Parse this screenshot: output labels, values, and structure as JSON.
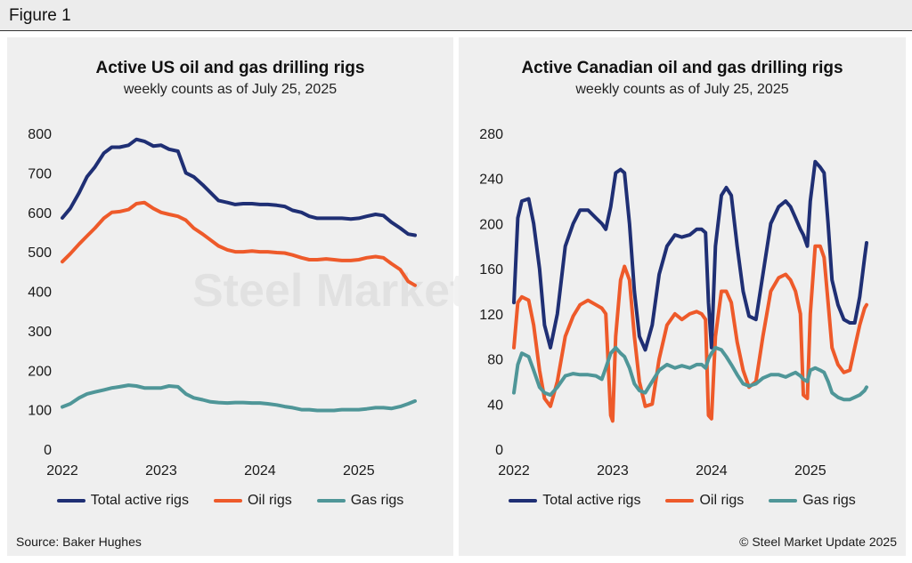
{
  "figure_title": "Figure 1",
  "watermark": "Steel Market Update",
  "footer": {
    "source": "Source: Baker Hughes",
    "copyright": "© Steel Market Update 2025"
  },
  "colors": {
    "total": "#1f2f74",
    "oil": "#ee5a2a",
    "gas": "#4f9698"
  },
  "chart_data": [
    {
      "type": "line",
      "title": "Active US oil and gas drilling rigs",
      "subtitle": "weekly counts as of July 25, 2025",
      "xlabel": "",
      "ylabel": "",
      "xlim": [
        2022.0,
        2025.75
      ],
      "ylim": [
        0,
        800
      ],
      "yticks": [
        0,
        100,
        200,
        300,
        400,
        500,
        600,
        700,
        800
      ],
      "xticks": [
        2022,
        2023,
        2024,
        2025
      ],
      "legend": "bottom",
      "series": [
        {
          "name": "Total active rigs",
          "color_key": "total",
          "x": [
            2022.0,
            2022.08,
            2022.17,
            2022.25,
            2022.33,
            2022.42,
            2022.5,
            2022.58,
            2022.67,
            2022.75,
            2022.83,
            2022.92,
            2023.0,
            2023.08,
            2023.17,
            2023.25,
            2023.33,
            2023.42,
            2023.5,
            2023.58,
            2023.67,
            2023.75,
            2023.83,
            2023.92,
            2024.0,
            2024.08,
            2024.17,
            2024.25,
            2024.33,
            2024.42,
            2024.5,
            2024.58,
            2024.67,
            2024.75,
            2024.83,
            2024.92,
            2025.0,
            2025.08,
            2025.17,
            2025.25,
            2025.33,
            2025.42,
            2025.5,
            2025.57
          ],
          "values": [
            586,
            610,
            650,
            690,
            715,
            750,
            765,
            765,
            770,
            785,
            780,
            768,
            770,
            760,
            755,
            700,
            690,
            670,
            650,
            630,
            625,
            620,
            622,
            622,
            620,
            620,
            618,
            615,
            605,
            600,
            590,
            585,
            585,
            585,
            585,
            583,
            585,
            590,
            595,
            592,
            575,
            560,
            545,
            542
          ]
        },
        {
          "name": "Oil rigs",
          "color_key": "oil",
          "x": [
            2022.0,
            2022.08,
            2022.17,
            2022.25,
            2022.33,
            2022.42,
            2022.5,
            2022.58,
            2022.67,
            2022.75,
            2022.83,
            2022.92,
            2023.0,
            2023.08,
            2023.17,
            2023.25,
            2023.33,
            2023.42,
            2023.5,
            2023.58,
            2023.67,
            2023.75,
            2023.83,
            2023.92,
            2024.0,
            2024.08,
            2024.17,
            2024.25,
            2024.33,
            2024.42,
            2024.5,
            2024.58,
            2024.67,
            2024.75,
            2024.83,
            2024.92,
            2025.0,
            2025.08,
            2025.17,
            2025.25,
            2025.33,
            2025.42,
            2025.5,
            2025.57
          ],
          "values": [
            475,
            495,
            520,
            540,
            560,
            585,
            600,
            602,
            607,
            622,
            625,
            610,
            600,
            595,
            590,
            580,
            560,
            545,
            530,
            515,
            505,
            500,
            500,
            502,
            500,
            500,
            498,
            497,
            492,
            485,
            480,
            480,
            482,
            480,
            478,
            478,
            480,
            485,
            488,
            485,
            470,
            455,
            425,
            415
          ]
        },
        {
          "name": "Gas rigs",
          "color_key": "gas",
          "x": [
            2022.0,
            2022.08,
            2022.17,
            2022.25,
            2022.33,
            2022.42,
            2022.5,
            2022.58,
            2022.67,
            2022.75,
            2022.83,
            2022.92,
            2023.0,
            2023.08,
            2023.17,
            2023.25,
            2023.33,
            2023.42,
            2023.5,
            2023.58,
            2023.67,
            2023.75,
            2023.83,
            2023.92,
            2024.0,
            2024.08,
            2024.17,
            2024.25,
            2024.33,
            2024.42,
            2024.5,
            2024.58,
            2024.67,
            2024.75,
            2024.83,
            2024.92,
            2025.0,
            2025.08,
            2025.17,
            2025.25,
            2025.33,
            2025.42,
            2025.5,
            2025.57
          ],
          "values": [
            107,
            115,
            130,
            140,
            145,
            150,
            155,
            158,
            162,
            160,
            155,
            155,
            155,
            160,
            158,
            140,
            130,
            125,
            120,
            118,
            117,
            118,
            118,
            117,
            117,
            115,
            112,
            108,
            105,
            100,
            100,
            98,
            98,
            98,
            100,
            100,
            100,
            102,
            105,
            105,
            103,
            108,
            115,
            122
          ]
        }
      ]
    },
    {
      "type": "line",
      "title": "Active Canadian oil and gas drilling rigs",
      "subtitle": "weekly counts as of July 25, 2025",
      "xlabel": "",
      "ylabel": "",
      "xlim": [
        2022.0,
        2025.75
      ],
      "ylim": [
        0,
        280
      ],
      "yticks": [
        0,
        40,
        80,
        120,
        160,
        200,
        240,
        280
      ],
      "xticks": [
        2022,
        2023,
        2024,
        2025
      ],
      "legend": "bottom",
      "series": [
        {
          "name": "Total active rigs",
          "color_key": "total",
          "x": [
            2022.0,
            2022.04,
            2022.08,
            2022.15,
            2022.2,
            2022.26,
            2022.31,
            2022.37,
            2022.44,
            2022.52,
            2022.6,
            2022.67,
            2022.75,
            2022.83,
            2022.89,
            2022.93,
            2022.98,
            2023.03,
            2023.08,
            2023.12,
            2023.17,
            2023.22,
            2023.27,
            2023.33,
            2023.4,
            2023.47,
            2023.55,
            2023.63,
            2023.7,
            2023.78,
            2023.85,
            2023.9,
            2023.94,
            2023.97,
            2024.0,
            2024.04,
            2024.1,
            2024.15,
            2024.2,
            2024.26,
            2024.32,
            2024.38,
            2024.45,
            2024.52,
            2024.6,
            2024.68,
            2024.75,
            2024.8,
            2024.85,
            2024.9,
            2024.93,
            2024.97,
            2025.0,
            2025.05,
            2025.1,
            2025.14,
            2025.18,
            2025.22,
            2025.28,
            2025.34,
            2025.4,
            2025.45,
            2025.5,
            2025.55,
            2025.57
          ],
          "values": [
            130,
            205,
            220,
            222,
            200,
            160,
            110,
            90,
            120,
            180,
            200,
            212,
            212,
            205,
            200,
            195,
            215,
            245,
            248,
            245,
            200,
            140,
            100,
            88,
            110,
            155,
            180,
            190,
            188,
            190,
            195,
            195,
            192,
            130,
            90,
            180,
            225,
            232,
            225,
            180,
            140,
            118,
            115,
            155,
            200,
            215,
            220,
            215,
            205,
            195,
            190,
            180,
            220,
            255,
            250,
            245,
            200,
            150,
            128,
            115,
            112,
            112,
            135,
            170,
            183
          ]
        },
        {
          "name": "Oil rigs",
          "color_key": "oil",
          "x": [
            2022.0,
            2022.04,
            2022.08,
            2022.15,
            2022.2,
            2022.26,
            2022.31,
            2022.37,
            2022.44,
            2022.52,
            2022.6,
            2022.67,
            2022.75,
            2022.83,
            2022.89,
            2022.93,
            2022.98,
            2023.0,
            2023.03,
            2023.08,
            2023.12,
            2023.17,
            2023.22,
            2023.27,
            2023.33,
            2023.4,
            2023.47,
            2023.55,
            2023.63,
            2023.7,
            2023.78,
            2023.85,
            2023.9,
            2023.94,
            2023.97,
            2024.0,
            2024.04,
            2024.1,
            2024.15,
            2024.2,
            2024.26,
            2024.32,
            2024.38,
            2024.45,
            2024.52,
            2024.6,
            2024.68,
            2024.75,
            2024.8,
            2024.85,
            2024.9,
            2024.93,
            2024.97,
            2025.0,
            2025.05,
            2025.1,
            2025.14,
            2025.18,
            2025.22,
            2025.28,
            2025.34,
            2025.4,
            2025.45,
            2025.5,
            2025.55,
            2025.57
          ],
          "values": [
            90,
            130,
            135,
            132,
            110,
            70,
            45,
            38,
            60,
            100,
            118,
            128,
            132,
            128,
            125,
            120,
            30,
            25,
            100,
            150,
            162,
            150,
            100,
            60,
            38,
            40,
            80,
            110,
            120,
            115,
            120,
            122,
            120,
            115,
            30,
            27,
            100,
            140,
            140,
            130,
            95,
            70,
            55,
            60,
            100,
            140,
            152,
            155,
            150,
            140,
            120,
            48,
            45,
            120,
            180,
            180,
            170,
            130,
            90,
            75,
            68,
            70,
            90,
            110,
            125,
            128
          ]
        },
        {
          "name": "Gas rigs",
          "color_key": "gas",
          "x": [
            2022.0,
            2022.04,
            2022.08,
            2022.15,
            2022.2,
            2022.26,
            2022.31,
            2022.37,
            2022.44,
            2022.52,
            2022.6,
            2022.67,
            2022.75,
            2022.83,
            2022.89,
            2022.93,
            2022.98,
            2023.03,
            2023.08,
            2023.12,
            2023.17,
            2023.22,
            2023.27,
            2023.33,
            2023.4,
            2023.47,
            2023.55,
            2023.63,
            2023.7,
            2023.78,
            2023.85,
            2023.9,
            2023.94,
            2023.97,
            2024.0,
            2024.04,
            2024.1,
            2024.15,
            2024.2,
            2024.26,
            2024.32,
            2024.38,
            2024.45,
            2024.52,
            2024.6,
            2024.68,
            2024.75,
            2024.8,
            2024.85,
            2024.9,
            2024.93,
            2024.97,
            2025.0,
            2025.05,
            2025.1,
            2025.14,
            2025.18,
            2025.22,
            2025.28,
            2025.34,
            2025.4,
            2025.45,
            2025.5,
            2025.55,
            2025.57
          ],
          "values": [
            50,
            75,
            85,
            82,
            70,
            55,
            50,
            48,
            55,
            65,
            67,
            66,
            66,
            65,
            62,
            72,
            85,
            90,
            85,
            82,
            72,
            58,
            52,
            50,
            60,
            70,
            75,
            72,
            74,
            72,
            75,
            75,
            72,
            80,
            85,
            90,
            88,
            82,
            75,
            66,
            58,
            56,
            58,
            63,
            66,
            66,
            64,
            66,
            68,
            65,
            62,
            60,
            70,
            72,
            70,
            68,
            60,
            50,
            46,
            44,
            44,
            46,
            48,
            52,
            55
          ]
        }
      ]
    }
  ]
}
